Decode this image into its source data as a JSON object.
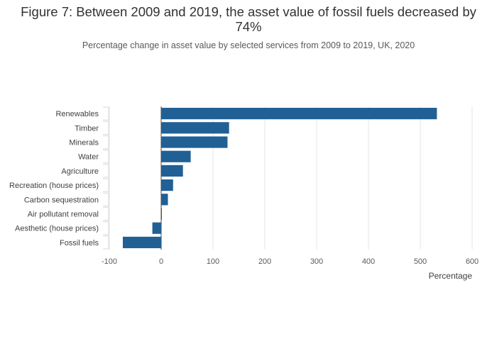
{
  "chart_data": {
    "type": "bar",
    "orientation": "horizontal",
    "title": "Figure 7: Between 2009 and 2019, the asset value of fossil fuels decreased by 74%",
    "subtitle": "Percentage change in asset value by selected services from 2009 to 2019, UK, 2020",
    "xlabel": "Percentage",
    "ylabel": "",
    "xlim": [
      -100,
      600
    ],
    "xticks": [
      -100,
      0,
      100,
      200,
      300,
      400,
      500,
      600
    ],
    "xtick_labels": [
      "-100",
      "0",
      "100",
      "200",
      "300",
      "400",
      "500",
      "600"
    ],
    "categories": [
      "Renewables",
      "Timber",
      "Minerals",
      "Water",
      "Agriculture",
      "Recreation (house prices)",
      "Carbon sequestration",
      "Air pollutant removal",
      "Aesthetic (house prices)",
      "Fossil fuels"
    ],
    "values": [
      532,
      131,
      128,
      57,
      42,
      23,
      13,
      1,
      -17,
      -74
    ],
    "bar_color": "#206095",
    "grid": true
  }
}
